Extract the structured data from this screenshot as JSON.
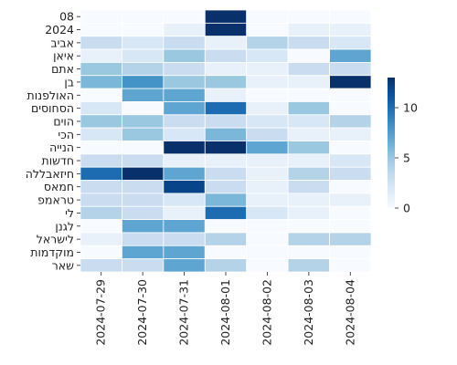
{
  "chart_data": {
    "type": "heatmap",
    "title": "",
    "xlabel": "",
    "ylabel": "",
    "x": [
      "2024-07-29",
      "2024-07-30",
      "2024-07-31",
      "2024-08-01",
      "2024-08-02",
      "2024-08-03",
      "2024-08-04"
    ],
    "y": [
      "08",
      "2024",
      "אביב",
      "איאן",
      "אתם",
      "בן",
      "האולפנות",
      "הסחוסים",
      "הוים",
      "הכי",
      "הנייה",
      "חדשות",
      "חיזאבללה",
      "חמאס",
      "טראמפ",
      "לי",
      "לגנן",
      "לישראל",
      "מוקדמות",
      "שאר"
    ],
    "values": [
      [
        0,
        0,
        0,
        13,
        0,
        0,
        0
      ],
      [
        0,
        0,
        1,
        14,
        0,
        1,
        1
      ],
      [
        3,
        2,
        3,
        1,
        4,
        3,
        2
      ],
      [
        1,
        2,
        5,
        3,
        2,
        0,
        7
      ],
      [
        5,
        4,
        3,
        1,
        1,
        3,
        3
      ],
      [
        6,
        8,
        5,
        5,
        1,
        1,
        13
      ],
      [
        0,
        7,
        7,
        1,
        0,
        0,
        0
      ],
      [
        2,
        0,
        7,
        10,
        1,
        5,
        0
      ],
      [
        5,
        5,
        3,
        3,
        2,
        2,
        4
      ],
      [
        2,
        5,
        2,
        6,
        3,
        1,
        1
      ],
      [
        0,
        0,
        13,
        14,
        7,
        5,
        0
      ],
      [
        3,
        3,
        1,
        1,
        1,
        1,
        2
      ],
      [
        10,
        15,
        7,
        3,
        1,
        4,
        3
      ],
      [
        3,
        3,
        12,
        3,
        1,
        3,
        0
      ],
      [
        3,
        3,
        2,
        6,
        1,
        1,
        1
      ],
      [
        4,
        3,
        1,
        10,
        2,
        1,
        0
      ],
      [
        0,
        7,
        7,
        0,
        0,
        0,
        0
      ],
      [
        1,
        3,
        3,
        4,
        0,
        4,
        4
      ],
      [
        0,
        7,
        7,
        0,
        0,
        0,
        0
      ],
      [
        3,
        3,
        7,
        4,
        0,
        4,
        0
      ]
    ],
    "zlim": [
      0,
      13
    ],
    "colorbar": {
      "ticks": [
        0,
        5,
        10
      ],
      "tick_labels": [
        "0",
        "5",
        "10"
      ]
    },
    "colormap": [
      "#f7fbff",
      "#deebf7",
      "#c6dbef",
      "#9ecae1",
      "#6baed6",
      "#4292c6",
      "#2171b5",
      "#08519c",
      "#08306b"
    ],
    "grid": false,
    "legend": "colorbar-right"
  }
}
